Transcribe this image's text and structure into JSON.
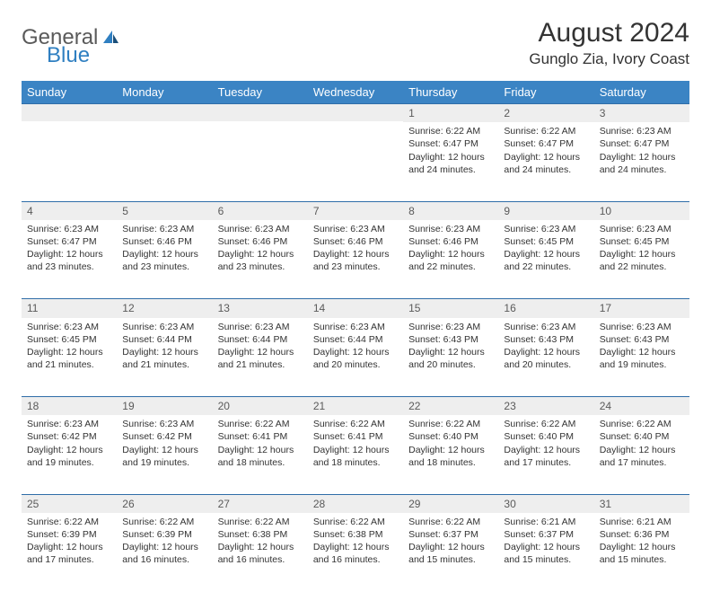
{
  "logo": {
    "part1": "General",
    "part2": "Blue"
  },
  "title": "August 2024",
  "location": "Gunglo Zia, Ivory Coast",
  "colors": {
    "header_bg": "#3b84c4",
    "header_text": "#ffffff",
    "daynum_bg": "#eeeeee",
    "border": "#2f6da8",
    "logo_gray": "#5a5a5a",
    "logo_blue": "#2f7fc1"
  },
  "weekdays": [
    "Sunday",
    "Monday",
    "Tuesday",
    "Wednesday",
    "Thursday",
    "Friday",
    "Saturday"
  ],
  "weeks": [
    [
      null,
      null,
      null,
      null,
      {
        "n": "1",
        "sunrise": "6:22 AM",
        "sunset": "6:47 PM",
        "daylight": "12 hours and 24 minutes."
      },
      {
        "n": "2",
        "sunrise": "6:22 AM",
        "sunset": "6:47 PM",
        "daylight": "12 hours and 24 minutes."
      },
      {
        "n": "3",
        "sunrise": "6:23 AM",
        "sunset": "6:47 PM",
        "daylight": "12 hours and 24 minutes."
      }
    ],
    [
      {
        "n": "4",
        "sunrise": "6:23 AM",
        "sunset": "6:47 PM",
        "daylight": "12 hours and 23 minutes."
      },
      {
        "n": "5",
        "sunrise": "6:23 AM",
        "sunset": "6:46 PM",
        "daylight": "12 hours and 23 minutes."
      },
      {
        "n": "6",
        "sunrise": "6:23 AM",
        "sunset": "6:46 PM",
        "daylight": "12 hours and 23 minutes."
      },
      {
        "n": "7",
        "sunrise": "6:23 AM",
        "sunset": "6:46 PM",
        "daylight": "12 hours and 23 minutes."
      },
      {
        "n": "8",
        "sunrise": "6:23 AM",
        "sunset": "6:46 PM",
        "daylight": "12 hours and 22 minutes."
      },
      {
        "n": "9",
        "sunrise": "6:23 AM",
        "sunset": "6:45 PM",
        "daylight": "12 hours and 22 minutes."
      },
      {
        "n": "10",
        "sunrise": "6:23 AM",
        "sunset": "6:45 PM",
        "daylight": "12 hours and 22 minutes."
      }
    ],
    [
      {
        "n": "11",
        "sunrise": "6:23 AM",
        "sunset": "6:45 PM",
        "daylight": "12 hours and 21 minutes."
      },
      {
        "n": "12",
        "sunrise": "6:23 AM",
        "sunset": "6:44 PM",
        "daylight": "12 hours and 21 minutes."
      },
      {
        "n": "13",
        "sunrise": "6:23 AM",
        "sunset": "6:44 PM",
        "daylight": "12 hours and 21 minutes."
      },
      {
        "n": "14",
        "sunrise": "6:23 AM",
        "sunset": "6:44 PM",
        "daylight": "12 hours and 20 minutes."
      },
      {
        "n": "15",
        "sunrise": "6:23 AM",
        "sunset": "6:43 PM",
        "daylight": "12 hours and 20 minutes."
      },
      {
        "n": "16",
        "sunrise": "6:23 AM",
        "sunset": "6:43 PM",
        "daylight": "12 hours and 20 minutes."
      },
      {
        "n": "17",
        "sunrise": "6:23 AM",
        "sunset": "6:43 PM",
        "daylight": "12 hours and 19 minutes."
      }
    ],
    [
      {
        "n": "18",
        "sunrise": "6:23 AM",
        "sunset": "6:42 PM",
        "daylight": "12 hours and 19 minutes."
      },
      {
        "n": "19",
        "sunrise": "6:23 AM",
        "sunset": "6:42 PM",
        "daylight": "12 hours and 19 minutes."
      },
      {
        "n": "20",
        "sunrise": "6:22 AM",
        "sunset": "6:41 PM",
        "daylight": "12 hours and 18 minutes."
      },
      {
        "n": "21",
        "sunrise": "6:22 AM",
        "sunset": "6:41 PM",
        "daylight": "12 hours and 18 minutes."
      },
      {
        "n": "22",
        "sunrise": "6:22 AM",
        "sunset": "6:40 PM",
        "daylight": "12 hours and 18 minutes."
      },
      {
        "n": "23",
        "sunrise": "6:22 AM",
        "sunset": "6:40 PM",
        "daylight": "12 hours and 17 minutes."
      },
      {
        "n": "24",
        "sunrise": "6:22 AM",
        "sunset": "6:40 PM",
        "daylight": "12 hours and 17 minutes."
      }
    ],
    [
      {
        "n": "25",
        "sunrise": "6:22 AM",
        "sunset": "6:39 PM",
        "daylight": "12 hours and 17 minutes."
      },
      {
        "n": "26",
        "sunrise": "6:22 AM",
        "sunset": "6:39 PM",
        "daylight": "12 hours and 16 minutes."
      },
      {
        "n": "27",
        "sunrise": "6:22 AM",
        "sunset": "6:38 PM",
        "daylight": "12 hours and 16 minutes."
      },
      {
        "n": "28",
        "sunrise": "6:22 AM",
        "sunset": "6:38 PM",
        "daylight": "12 hours and 16 minutes."
      },
      {
        "n": "29",
        "sunrise": "6:22 AM",
        "sunset": "6:37 PM",
        "daylight": "12 hours and 15 minutes."
      },
      {
        "n": "30",
        "sunrise": "6:21 AM",
        "sunset": "6:37 PM",
        "daylight": "12 hours and 15 minutes."
      },
      {
        "n": "31",
        "sunrise": "6:21 AM",
        "sunset": "6:36 PM",
        "daylight": "12 hours and 15 minutes."
      }
    ]
  ],
  "labels": {
    "sunrise": "Sunrise: ",
    "sunset": "Sunset: ",
    "daylight": "Daylight: "
  }
}
